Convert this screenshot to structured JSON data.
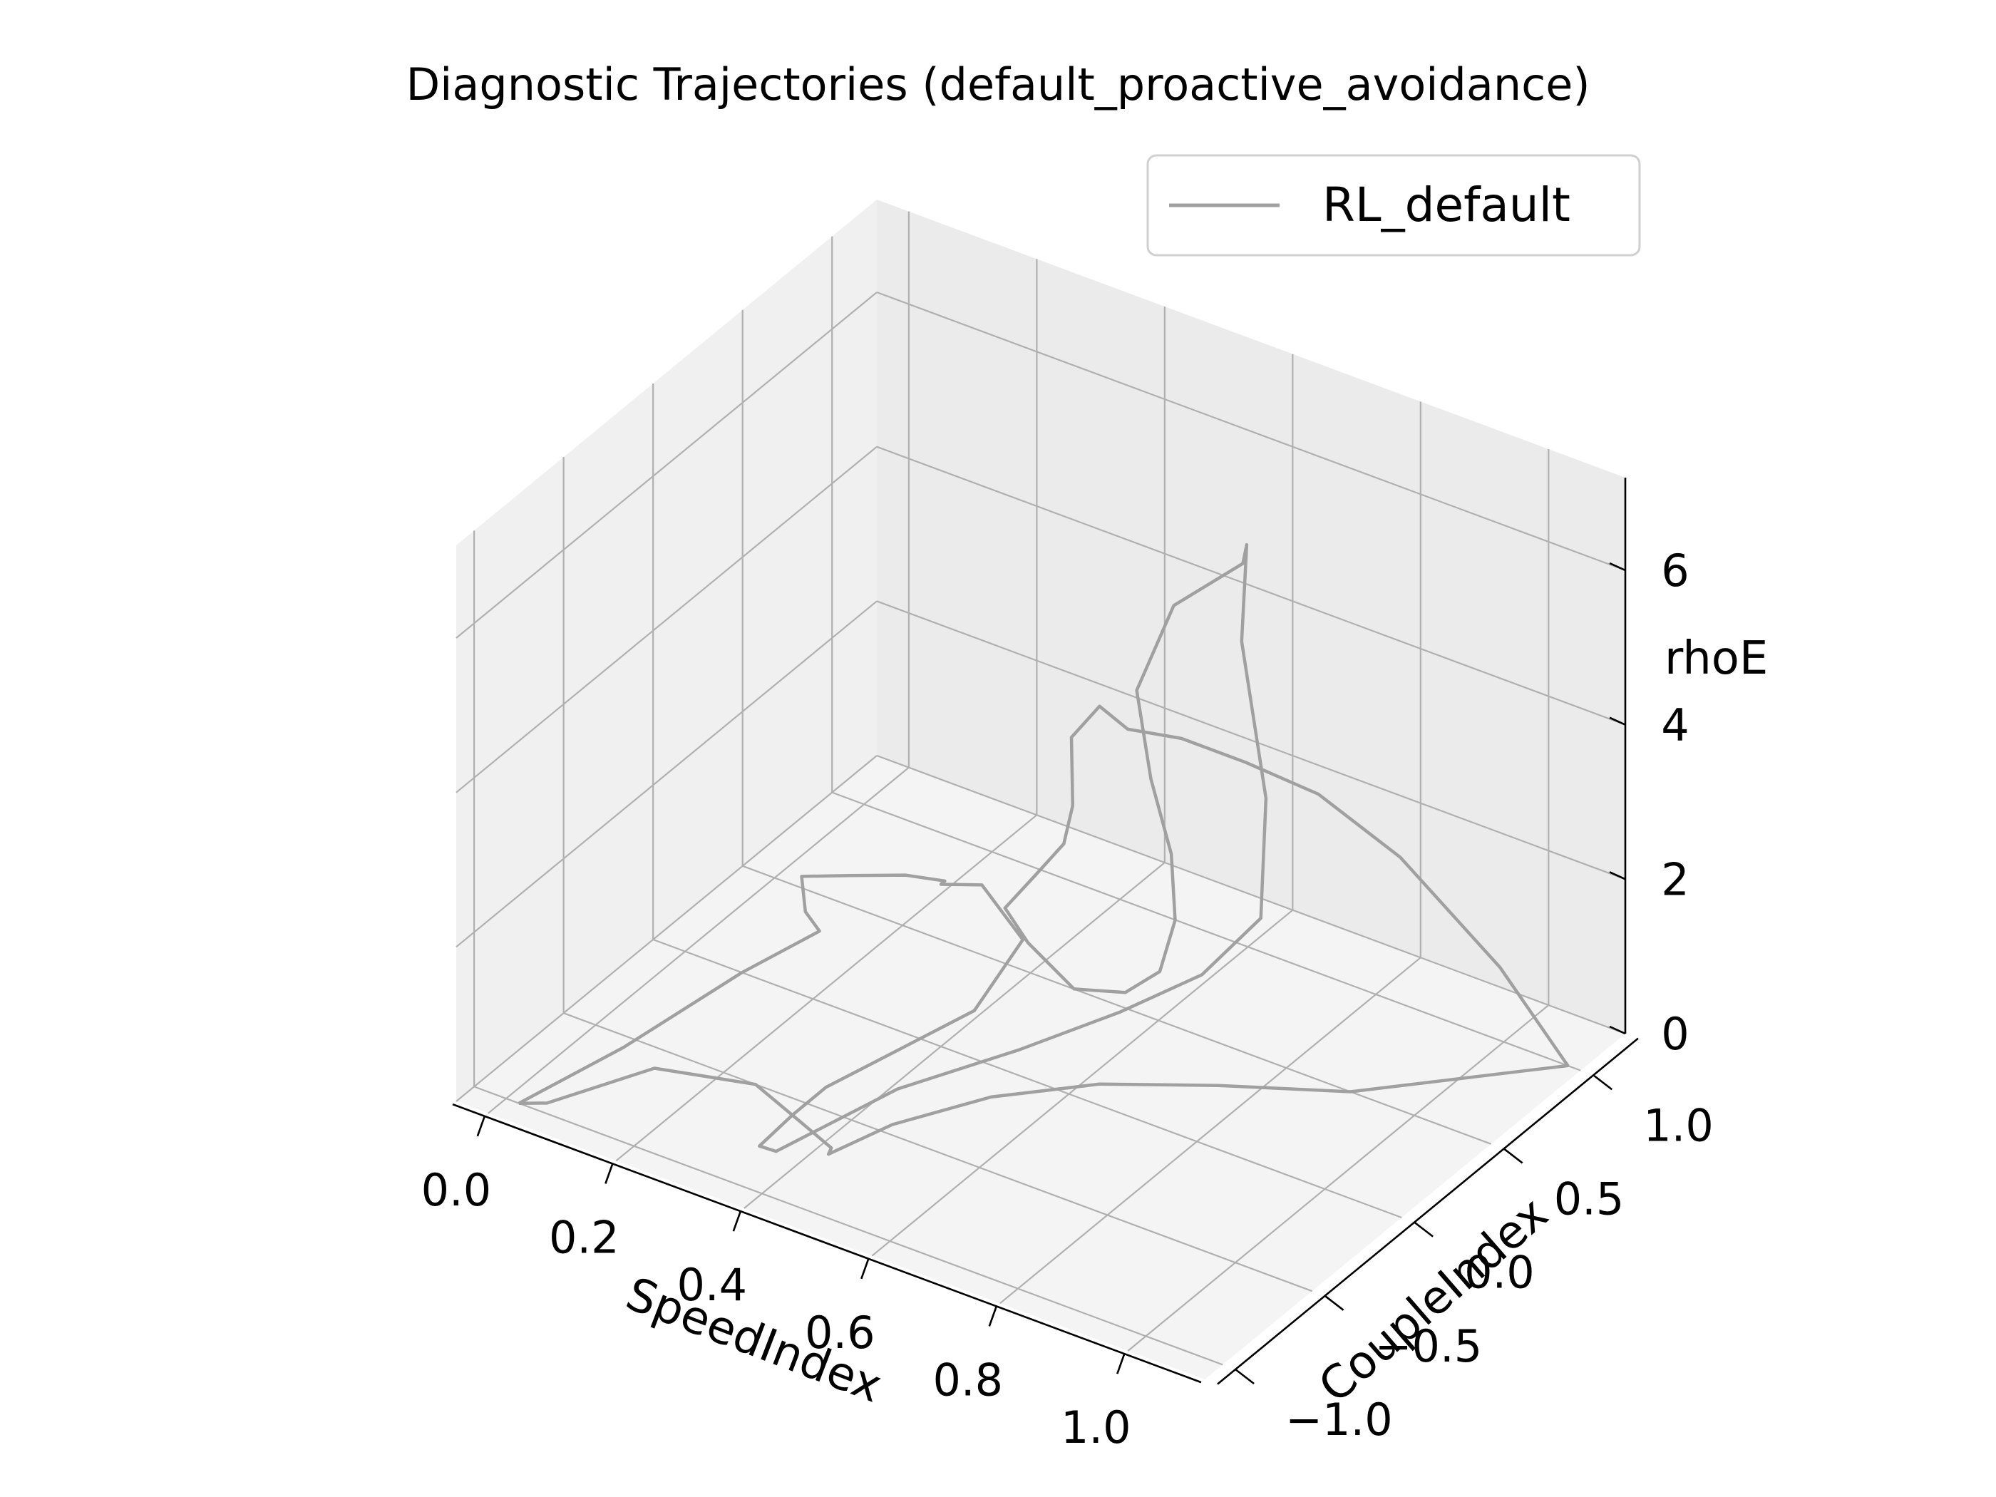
{
  "chart_data": {
    "type": "line",
    "projection": "3d",
    "title": "Diagnostic Trajectories (default_proactive_avoidance)",
    "xlabel": "SpeedIndex",
    "ylabel": "CoupleIndex",
    "zlabel": "rhoE",
    "xlim": [
      -0.05,
      1.12
    ],
    "ylim": [
      -1.1,
      1.25
    ],
    "zlim": [
      0,
      7.2
    ],
    "x_ticks": [
      0.0,
      0.2,
      0.4,
      0.6,
      0.8,
      1.0
    ],
    "x_tick_labels": [
      "0.0",
      "0.2",
      "0.4",
      "0.6",
      "0.8",
      "1.0"
    ],
    "y_ticks": [
      -1.0,
      -0.5,
      0.0,
      0.5,
      1.0
    ],
    "y_tick_labels": [
      "−1.0",
      "−0.5",
      "0.0",
      "0.5",
      "1.0"
    ],
    "z_ticks": [
      0,
      2,
      4,
      6
    ],
    "z_tick_labels": [
      "0",
      "2",
      "4",
      "6"
    ],
    "grid": true,
    "legend_position": "top-right",
    "colors": {
      "series": "#a0a0a0",
      "pane": "#f2f2f2",
      "grid": "#b0b0b0",
      "axis": "#000000"
    },
    "series": [
      {
        "name": "RL_default",
        "points": [
          [
            0.02,
            -1.0,
            0.0
          ],
          [
            0.1,
            -0.7,
            0.4
          ],
          [
            0.2,
            -0.4,
            1.1
          ],
          [
            0.28,
            -0.25,
            1.6
          ],
          [
            0.3,
            -0.4,
            2.2
          ],
          [
            0.28,
            -0.35,
            2.5
          ],
          [
            0.34,
            -0.3,
            2.6
          ],
          [
            0.4,
            -0.2,
            2.6
          ],
          [
            0.42,
            -0.05,
            2.3
          ],
          [
            0.4,
            0.0,
            2.1
          ],
          [
            0.45,
            0.05,
            2.15
          ],
          [
            0.5,
            0.1,
            1.5
          ],
          [
            0.48,
            -0.1,
            0.9
          ],
          [
            0.42,
            -0.3,
            0.6
          ],
          [
            0.36,
            -0.5,
            0.3
          ],
          [
            0.35,
            -0.65,
            0.2
          ],
          [
            0.34,
            -0.8,
            0.05
          ],
          [
            0.38,
            -0.85,
            0.2
          ],
          [
            0.5,
            -0.6,
            0.9
          ],
          [
            0.62,
            -0.35,
            1.3
          ],
          [
            0.75,
            -0.25,
            2.0
          ],
          [
            0.85,
            -0.15,
            2.6
          ],
          [
            0.9,
            0.0,
            3.2
          ],
          [
            0.88,
            0.1,
            4.5
          ],
          [
            0.8,
            0.25,
            6.0
          ],
          [
            0.78,
            0.35,
            7.0
          ],
          [
            0.76,
            0.4,
            6.6
          ],
          [
            0.68,
            0.3,
            6.0
          ],
          [
            0.65,
            0.2,
            5.0
          ],
          [
            0.7,
            0.1,
            4.2
          ],
          [
            0.76,
            0.0,
            3.6
          ],
          [
            0.78,
            -0.05,
            2.9
          ],
          [
            0.77,
            -0.1,
            2.3
          ],
          [
            0.73,
            -0.15,
            2.0
          ],
          [
            0.65,
            -0.15,
            1.8
          ],
          [
            0.55,
            -0.05,
            1.9
          ],
          [
            0.5,
            0.0,
            2.1
          ],
          [
            0.52,
            0.1,
            2.4
          ],
          [
            0.55,
            0.15,
            2.8
          ],
          [
            0.55,
            0.2,
            3.2
          ],
          [
            0.52,
            0.3,
            3.8
          ],
          [
            0.55,
            0.35,
            4.2
          ],
          [
            0.58,
            0.4,
            3.9
          ],
          [
            0.65,
            0.45,
            3.9
          ],
          [
            0.75,
            0.45,
            3.9
          ],
          [
            0.85,
            0.5,
            3.7
          ],
          [
            0.95,
            0.6,
            3.0
          ],
          [
            1.05,
            0.8,
            1.5
          ],
          [
            1.1,
            1.0,
            0.0
          ],
          [
            1.06,
            0.9,
            0.0
          ],
          [
            0.9,
            0.5,
            0.0
          ],
          [
            0.75,
            0.3,
            0.0
          ],
          [
            0.62,
            0.1,
            0.0
          ],
          [
            0.52,
            -0.15,
            0.0
          ],
          [
            0.45,
            -0.45,
            0.0
          ],
          [
            0.42,
            -0.7,
            0.0
          ],
          [
            0.43,
            -0.72,
            0.15
          ],
          [
            0.35,
            -0.6,
            0.0
          ],
          [
            0.25,
            -0.5,
            0.0
          ],
          [
            0.12,
            -0.6,
            0.0
          ],
          [
            0.05,
            -0.95,
            0.0
          ],
          [
            0.02,
            -1.0,
            0.0
          ]
        ]
      }
    ]
  }
}
